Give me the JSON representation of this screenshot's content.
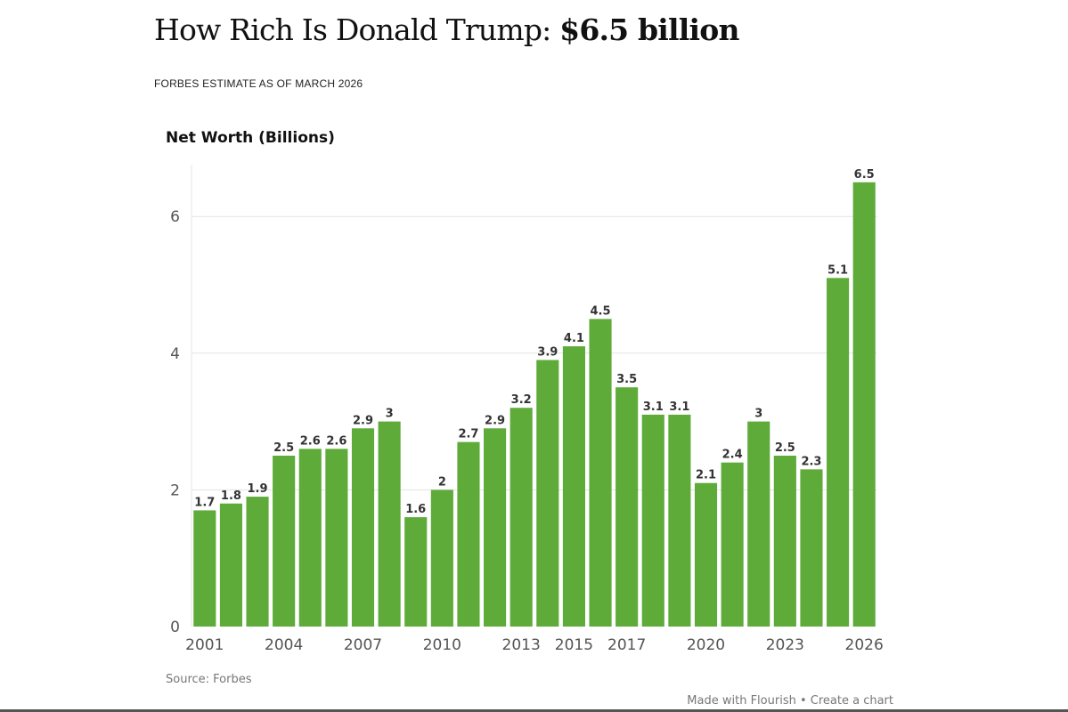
{
  "header": {
    "title_prefix": "How Rich Is Donald Trump: ",
    "title_figure": "$6.5 billion",
    "subtitle": "FORBES ESTIMATE AS OF MARCH 2026"
  },
  "footer": {
    "source": "Source: Forbes",
    "made_with": "Made with Flourish",
    "separator": " • ",
    "create_chart": "Create a chart"
  },
  "colors": {
    "bar": "#5eab3a",
    "gridline": "#e3e3e3",
    "tick_text": "#555555",
    "label_text": "#333333"
  },
  "chart_data": {
    "type": "bar",
    "title": "Net Worth (Billions)",
    "xlabel": "",
    "ylabel": "Net Worth (Billions)",
    "ylim": [
      0,
      6.7
    ],
    "yticks": [
      0,
      2,
      4,
      6
    ],
    "grid": true,
    "categories": [
      "2001",
      "2002",
      "2003",
      "2004",
      "2005",
      "2006",
      "2007",
      "2008",
      "2009",
      "2010",
      "2011",
      "2012",
      "2013",
      "2014",
      "2015",
      "2016",
      "2017",
      "2018",
      "2019",
      "2020",
      "2021",
      "2022",
      "2023",
      "2024",
      "2025",
      "2026"
    ],
    "values": [
      1.7,
      1.8,
      1.9,
      2.5,
      2.6,
      2.6,
      2.9,
      3,
      1.6,
      2,
      2.7,
      2.9,
      3.2,
      3.9,
      4.1,
      4.5,
      3.5,
      3.1,
      3.1,
      2.1,
      2.4,
      3,
      2.5,
      2.3,
      5.1,
      6.5
    ],
    "xtick_labels": [
      "2001",
      "2004",
      "2007",
      "2010",
      "2013",
      "2015",
      "2017",
      "2020",
      "2023",
      "2026"
    ]
  }
}
